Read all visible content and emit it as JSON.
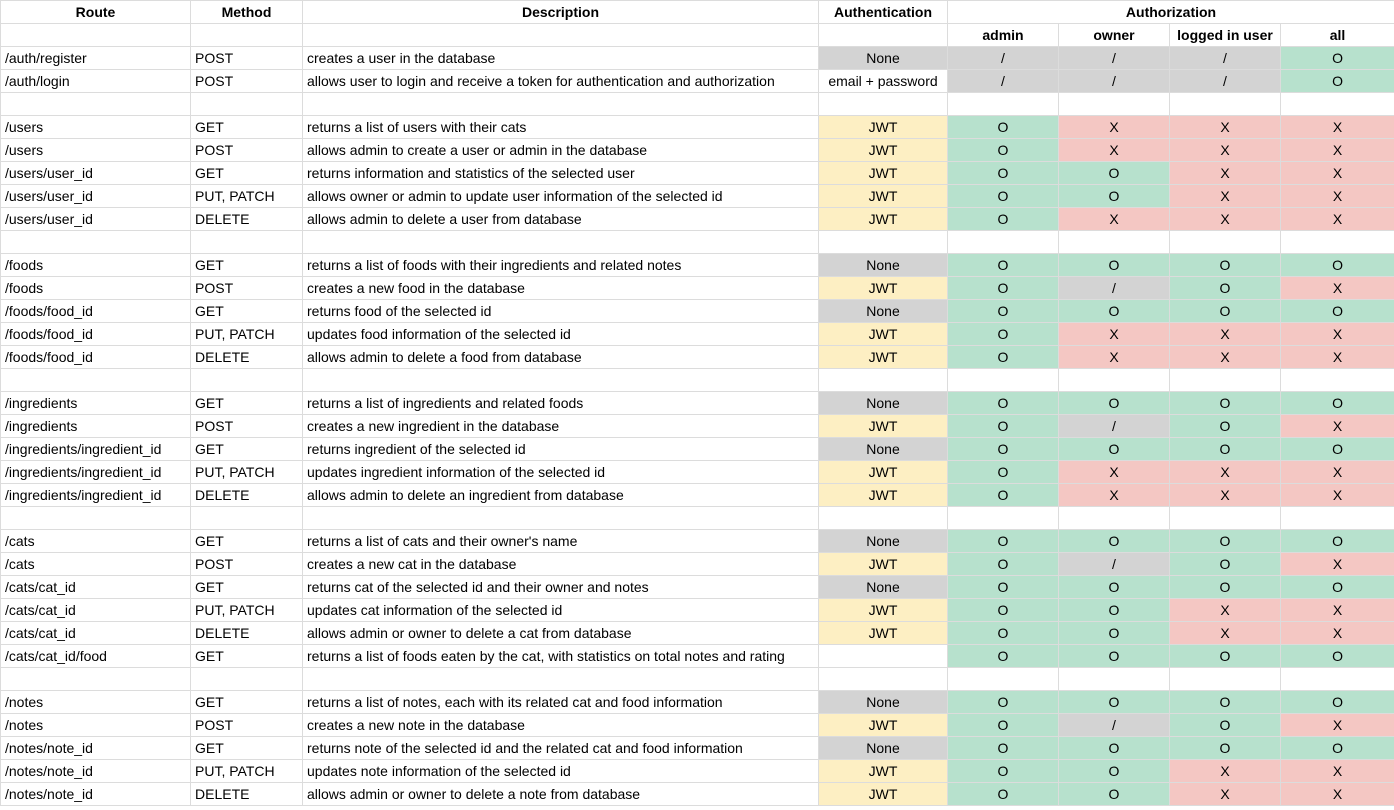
{
  "headers": {
    "route": "Route",
    "method": "Method",
    "description": "Description",
    "authentication": "Authentication",
    "authorization": "Authorization"
  },
  "roles": [
    "admin",
    "owner",
    "logged in user",
    "all"
  ],
  "groups": [
    {
      "rows": [
        {
          "route": "/auth/register",
          "method": "POST",
          "description": "creates a user in the database",
          "auth": "None",
          "perms": [
            "/",
            "/",
            "/",
            "O"
          ]
        },
        {
          "route": "/auth/login",
          "method": "POST",
          "description": "allows user to login and receive a token for authentication and authorization",
          "auth": "email + password",
          "perms": [
            "/",
            "/",
            "/",
            "O"
          ]
        }
      ]
    },
    {
      "rows": [
        {
          "route": "/users",
          "method": "GET",
          "description": "returns a list of users with their cats",
          "auth": "JWT",
          "perms": [
            "O",
            "X",
            "X",
            "X"
          ]
        },
        {
          "route": "/users",
          "method": "POST",
          "description": "allows admin to create a user or admin in the database",
          "auth": "JWT",
          "perms": [
            "O",
            "X",
            "X",
            "X"
          ]
        },
        {
          "route": "/users/user_id",
          "method": "GET",
          "description": "returns information and statistics of the selected user",
          "auth": "JWT",
          "perms": [
            "O",
            "O",
            "X",
            "X"
          ]
        },
        {
          "route": "/users/user_id",
          "method": "PUT, PATCH",
          "description": "allows owner or admin to update user information of the selected id",
          "auth": "JWT",
          "perms": [
            "O",
            "O",
            "X",
            "X"
          ]
        },
        {
          "route": "/users/user_id",
          "method": "DELETE",
          "description": "allows admin to delete a user from database",
          "auth": "JWT",
          "perms": [
            "O",
            "X",
            "X",
            "X"
          ]
        }
      ]
    },
    {
      "rows": [
        {
          "route": "/foods",
          "method": "GET",
          "description": "returns a list of foods with their ingredients and related notes",
          "auth": "None",
          "perms": [
            "O",
            "O",
            "O",
            "O"
          ]
        },
        {
          "route": "/foods",
          "method": "POST",
          "description": "creates a new food in the database",
          "auth": "JWT",
          "perms": [
            "O",
            "/",
            "O",
            "X"
          ]
        },
        {
          "route": "/foods/food_id",
          "method": "GET",
          "description": "returns food of the selected id",
          "auth": "None",
          "perms": [
            "O",
            "O",
            "O",
            "O"
          ]
        },
        {
          "route": "/foods/food_id",
          "method": "PUT, PATCH",
          "description": "updates food information of the selected id",
          "auth": "JWT",
          "perms": [
            "O",
            "X",
            "X",
            "X"
          ]
        },
        {
          "route": "/foods/food_id",
          "method": "DELETE",
          "description": "allows admin to delete a food from database",
          "auth": "JWT",
          "perms": [
            "O",
            "X",
            "X",
            "X"
          ]
        }
      ]
    },
    {
      "rows": [
        {
          "route": "/ingredients",
          "method": "GET",
          "description": "returns a list of ingredients and related foods",
          "auth": "None",
          "perms": [
            "O",
            "O",
            "O",
            "O"
          ]
        },
        {
          "route": "/ingredients",
          "method": "POST",
          "description": "creates a new ingredient in the database",
          "auth": "JWT",
          "perms": [
            "O",
            "/",
            "O",
            "X"
          ]
        },
        {
          "route": "/ingredients/ingredient_id",
          "method": "GET",
          "description": "returns ingredient of the selected id",
          "auth": "None",
          "perms": [
            "O",
            "O",
            "O",
            "O"
          ]
        },
        {
          "route": "/ingredients/ingredient_id",
          "method": "PUT, PATCH",
          "description": "updates ingredient information of the selected id",
          "auth": "JWT",
          "perms": [
            "O",
            "X",
            "X",
            "X"
          ]
        },
        {
          "route": "/ingredients/ingredient_id",
          "method": "DELETE",
          "description": "allows admin to delete an ingredient from database",
          "auth": "JWT",
          "perms": [
            "O",
            "X",
            "X",
            "X"
          ]
        }
      ]
    },
    {
      "rows": [
        {
          "route": "/cats",
          "method": "GET",
          "description": "returns a list of cats and their owner's name",
          "auth": "None",
          "perms": [
            "O",
            "O",
            "O",
            "O"
          ]
        },
        {
          "route": "/cats",
          "method": "POST",
          "description": "creates a new cat in the database",
          "auth": "JWT",
          "perms": [
            "O",
            "/",
            "O",
            "X"
          ]
        },
        {
          "route": "/cats/cat_id",
          "method": "GET",
          "description": "returns cat of the selected id and their owner and notes",
          "auth": "None",
          "perms": [
            "O",
            "O",
            "O",
            "O"
          ]
        },
        {
          "route": "/cats/cat_id",
          "method": "PUT, PATCH",
          "description": "updates cat information of the selected id",
          "auth": "JWT",
          "perms": [
            "O",
            "O",
            "X",
            "X"
          ]
        },
        {
          "route": "/cats/cat_id",
          "method": "DELETE",
          "description": "allows admin or owner to delete a cat from database",
          "auth": "JWT",
          "perms": [
            "O",
            "O",
            "X",
            "X"
          ]
        },
        {
          "route": "/cats/cat_id/food",
          "method": "GET",
          "description": "returns a list of foods eaten by the cat, with statistics on total notes and rating",
          "auth": "",
          "perms": [
            "O",
            "O",
            "O",
            "O"
          ]
        }
      ]
    },
    {
      "rows": [
        {
          "route": "/notes",
          "method": "GET",
          "description": "returns a list of notes, each with its related cat and food information",
          "auth": "None",
          "perms": [
            "O",
            "O",
            "O",
            "O"
          ]
        },
        {
          "route": "/notes",
          "method": "POST",
          "description": "creates a new note in the database",
          "auth": "JWT",
          "perms": [
            "O",
            "/",
            "O",
            "X"
          ]
        },
        {
          "route": "/notes/note_id",
          "method": "GET",
          "description": "returns note of the selected id and the related cat and food information",
          "auth": "None",
          "perms": [
            "O",
            "O",
            "O",
            "O"
          ]
        },
        {
          "route": "/notes/note_id",
          "method": "PUT, PATCH",
          "description": "updates note information of the selected id",
          "auth": "JWT",
          "perms": [
            "O",
            "O",
            "X",
            "X"
          ]
        },
        {
          "route": "/notes/note_id",
          "method": "DELETE",
          "description": "allows admin or owner to delete a note from database",
          "auth": "JWT",
          "perms": [
            "O",
            "O",
            "X",
            "X"
          ]
        }
      ]
    }
  ],
  "colors": {
    "none_auth": "#d3d3d3",
    "jwt_auth": "#fdefc3",
    "allowed": "#b7e1cd",
    "denied": "#f4c7c3",
    "not_applicable": "#d3d3d3"
  }
}
